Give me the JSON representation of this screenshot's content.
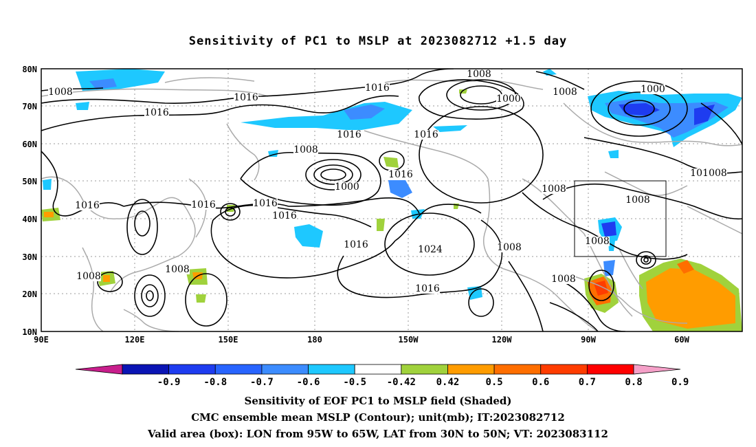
{
  "title": "Sensitivity of PC1 to MSLP at 2023082712 +1.5 day",
  "lat_labels": [
    "80N",
    "70N",
    "60N",
    "50N",
    "40N",
    "30N",
    "20N",
    "10N"
  ],
  "lon_labels": [
    "90E",
    "120E",
    "150E",
    "180",
    "150W",
    "120W",
    "90W",
    "60W"
  ],
  "colorbar": {
    "labels": [
      "-0.9",
      "-0.8",
      "-0.7",
      "-0.6",
      "-0.5",
      "-0.42",
      "0.42",
      "0.5",
      "0.6",
      "0.7",
      "0.8",
      "0.9"
    ],
    "colors": [
      "#c81e8c",
      "#0a14b4",
      "#1e3cf0",
      "#2864ff",
      "#3c8cff",
      "#1ec8ff",
      "#ffffff",
      "#a0d23c",
      "#ff9c00",
      "#ff6e00",
      "#ff3c00",
      "#ff0000",
      "#f5a0c8"
    ]
  },
  "contour_labels": [
    {
      "text": "1008"
    },
    {
      "text": "1016"
    },
    {
      "text": "1016"
    },
    {
      "text": "1008"
    },
    {
      "text": "1000"
    },
    {
      "text": "1008"
    },
    {
      "text": "1008"
    },
    {
      "text": "1016"
    },
    {
      "text": "1016"
    },
    {
      "text": "1016"
    },
    {
      "text": "1000"
    },
    {
      "text": "1000"
    },
    {
      "text": "1008"
    },
    {
      "text": "1008"
    },
    {
      "text": "1008"
    },
    {
      "text": "1016"
    },
    {
      "text": "1016"
    },
    {
      "text": "1016"
    },
    {
      "text": "1016"
    },
    {
      "text": "1016"
    },
    {
      "text": "1016"
    },
    {
      "text": "1024"
    },
    {
      "text": "1008"
    },
    {
      "text": "1008"
    },
    {
      "text": "1016"
    },
    {
      "text": "1008"
    },
    {
      "text": "1008"
    },
    {
      "text": "1008"
    },
    {
      "text": "1008"
    }
  ],
  "caption_lines": [
    "Sensitivity of EOF PC1 to MSLP field (Shaded)",
    "CMC ensemble mean MSLP (Contour); unit(mb); IT:2023082712",
    "Valid area (box): LON from 95W to 65W, LAT from 30N to 50N; VT: 2023083112"
  ]
}
